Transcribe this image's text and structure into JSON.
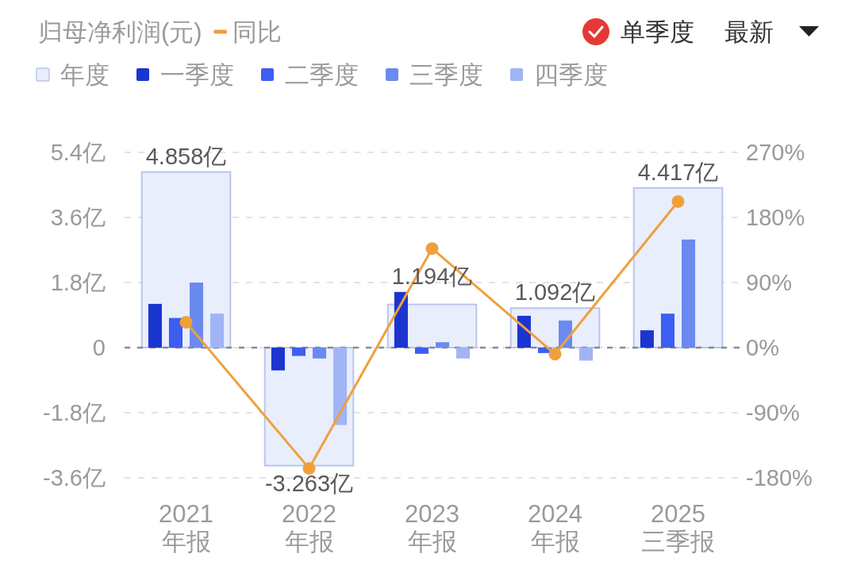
{
  "chart_data": {
    "type": "bar",
    "ylabel": "归母净利润(元)",
    "categories": [
      "2021\n年报",
      "2022\n年报",
      "2023\n年报",
      "2024\n年报",
      "2025\n三季报"
    ],
    "series": [
      {
        "name": "年度",
        "color": "#e9eefc",
        "values": [
          4.858,
          -3.263,
          1.194,
          1.092,
          4.417
        ],
        "value_labels": [
          "4.858亿",
          "-3.263亿",
          "1.194亿",
          "1.092亿",
          "4.417亿"
        ]
      },
      {
        "name": "一季度",
        "color": "#1b35cf",
        "values": [
          1.21,
          -0.63,
          1.54,
          0.88,
          0.48
        ]
      },
      {
        "name": "二季度",
        "color": "#3d5ef0",
        "values": [
          0.82,
          -0.23,
          -0.17,
          -0.15,
          0.94
        ]
      },
      {
        "name": "三季度",
        "color": "#6b8af0",
        "values": [
          1.8,
          -0.3,
          0.15,
          0.75,
          2.99
        ]
      },
      {
        "name": "四季度",
        "color": "#a1b4f5",
        "values": [
          0.94,
          -2.14,
          -0.3,
          -0.36,
          null
        ]
      },
      {
        "name": "同比",
        "type": "line",
        "axis": "y2",
        "color": "#efa03c",
        "values": [
          35,
          -167,
          137,
          -9,
          202
        ]
      }
    ],
    "ylim": [
      -3.6,
      5.4
    ],
    "yticks": [
      {
        "value": 5.4,
        "label": "5.4亿"
      },
      {
        "value": 3.6,
        "label": "3.6亿"
      },
      {
        "value": 1.8,
        "label": "1.8亿"
      },
      0,
      {
        "value": -1.8,
        "label": "-1.8亿"
      },
      {
        "value": -3.6,
        "label": "-3.6亿"
      }
    ],
    "y2lim": [
      -180,
      270
    ],
    "y2ticks": [
      {
        "value": 270,
        "label": "270%"
      },
      {
        "value": 180,
        "label": "180%"
      },
      {
        "value": 90,
        "label": "90%"
      },
      {
        "value": 0,
        "label": "0%"
      },
      {
        "value": -90,
        "label": "-90%"
      },
      {
        "value": -180,
        "label": "-180%"
      }
    ],
    "ref_lines": [
      {
        "axis": "y",
        "value": 0,
        "color": "#8a8a8a",
        "line_style": "dashed"
      }
    ],
    "grid": "y",
    "legend": "top",
    "marker": "circle",
    "annotations": [
      "单季度",
      "最新"
    ]
  }
}
